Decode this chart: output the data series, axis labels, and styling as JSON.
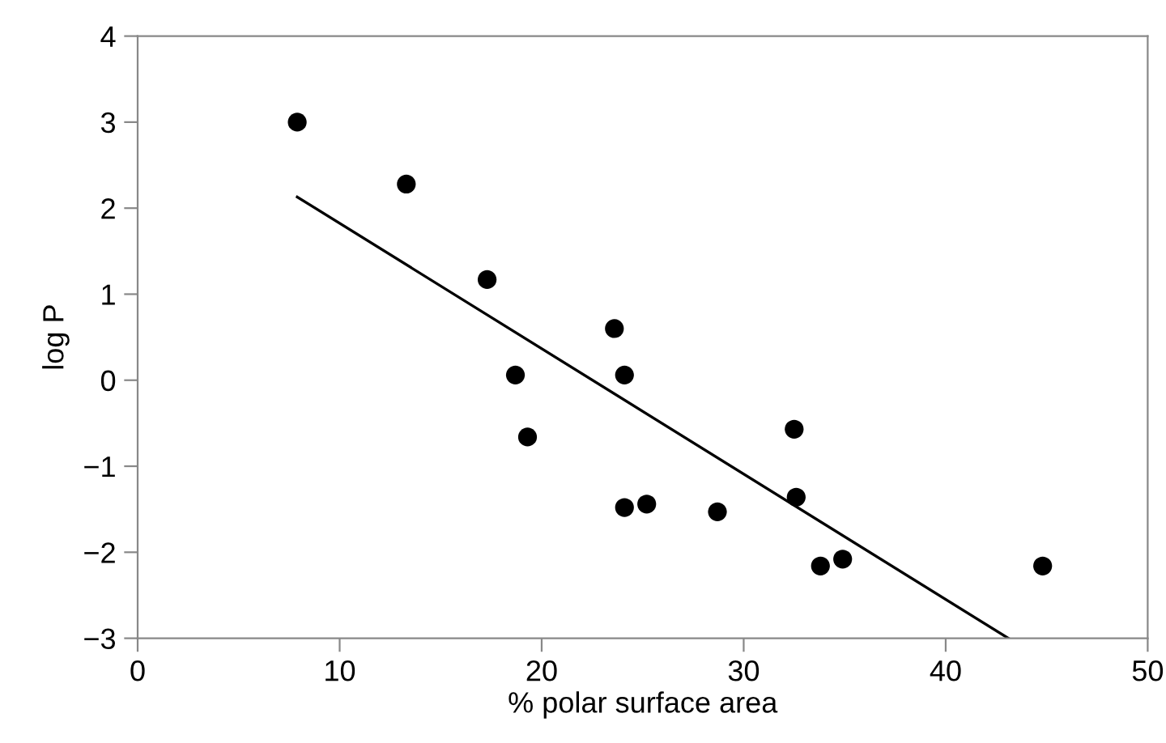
{
  "chart_data": {
    "type": "scatter",
    "xlabel": "% polar surface area",
    "ylabel": "log P",
    "xlim": [
      0,
      50
    ],
    "ylim": [
      -3,
      4
    ],
    "xticks": [
      0,
      10,
      20,
      30,
      40,
      50
    ],
    "yticks": [
      {
        "value": -3,
        "label": "−3"
      },
      {
        "value": -2,
        "label": "−2"
      },
      {
        "value": -1,
        "label": "−1"
      },
      0,
      1,
      2,
      3,
      4
    ],
    "grid": false,
    "legend": false,
    "series": [
      {
        "color": "#000000",
        "marker": "circle",
        "x": [
          7.9,
          13.3,
          17.3,
          18.7,
          19.3,
          23.6,
          24.1,
          24.1,
          25.2,
          28.7,
          32.5,
          32.6,
          33.8,
          34.9,
          44.8
        ],
        "values": [
          3.0,
          2.28,
          1.17,
          0.06,
          -0.66,
          0.6,
          0.06,
          -1.48,
          -1.44,
          -1.53,
          -0.57,
          -1.36,
          -2.16,
          -2.08,
          -2.16
        ]
      },
      {
        "type": "line",
        "color": "#000000",
        "marker": "none",
        "line_style": "solid",
        "x": [
          7.9,
          43.1
        ],
        "values": [
          2.13,
          -3.0
        ]
      }
    ]
  }
}
